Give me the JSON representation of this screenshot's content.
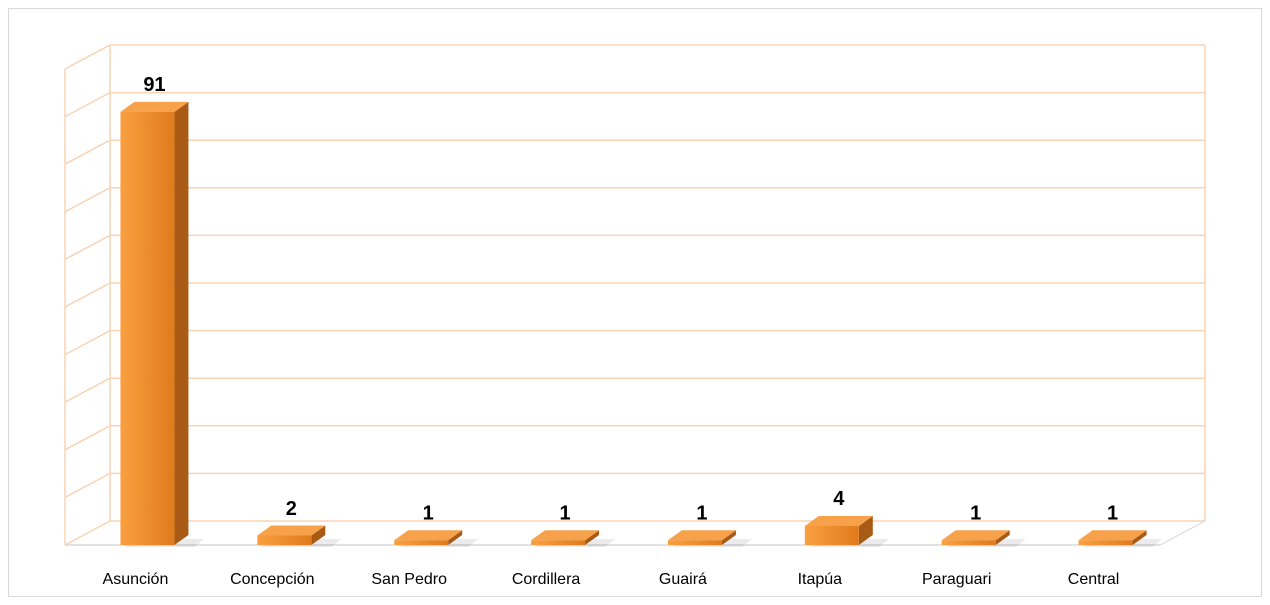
{
  "chart_data": {
    "type": "bar3d",
    "categories": [
      "Asunción",
      "Concepción",
      "San Pedro",
      "Cordillera",
      "Guairá",
      "Itapúa",
      "Paraguari",
      "Central"
    ],
    "values": [
      91,
      2,
      1,
      1,
      1,
      4,
      1,
      1
    ],
    "color": "#f28a1f",
    "ylim": [
      0,
      100
    ],
    "yticks": [
      0,
      10,
      20,
      30,
      40,
      50,
      60,
      70,
      80,
      90,
      100
    ],
    "grid": true,
    "tick_labels": false
  }
}
